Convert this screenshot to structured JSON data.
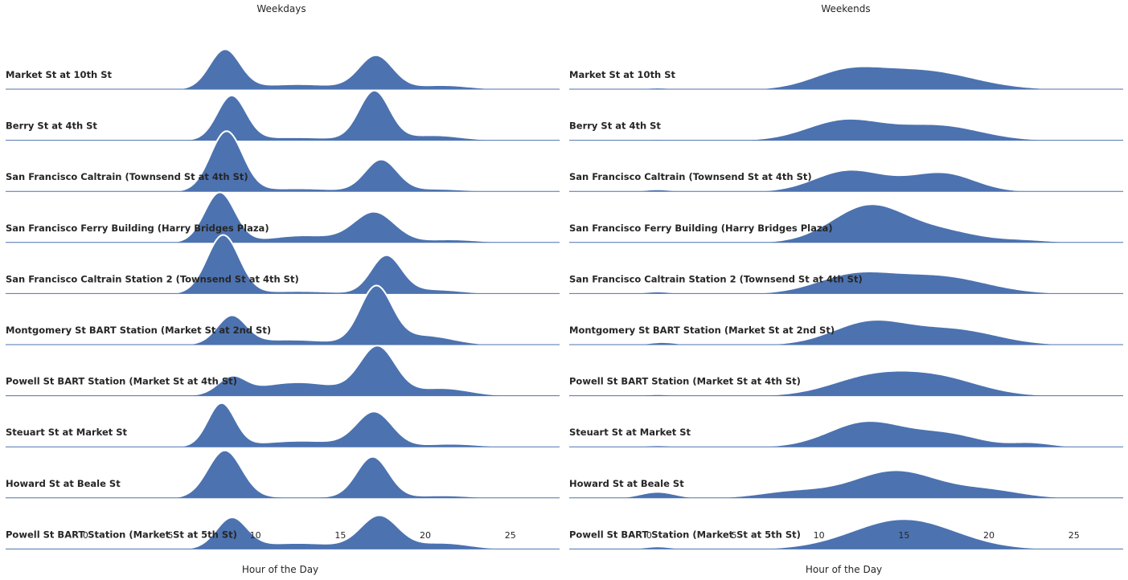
{
  "chart_data": {
    "type": "area",
    "subtype": "ridgeline-density",
    "fill_color": "#4c72b0",
    "outline_color": "#ffffff",
    "baseline_color": "#4c72b0",
    "x_range": [
      -4.7,
      27.9
    ],
    "xticks": [
      0,
      5,
      10,
      15,
      20,
      25
    ],
    "xlabel": "Hour of the Day",
    "grid": false,
    "legend": "none",
    "row_labels": [
      "Market St at 10th St",
      "Berry St at 4th St",
      "San Francisco Caltrain (Townsend St at 4th St)",
      "San Francisco Ferry Building (Harry Bridges Plaza)",
      "San Francisco Caltrain Station 2  (Townsend St at 4th St)",
      "Montgomery St BART Station (Market St at 2nd St)",
      "Powell St BART Station (Market St at 4th St)",
      "Steuart St at Market St",
      "Howard St at Beale St",
      "Powell St BART Station (Market St at 5th St)"
    ],
    "panels": [
      {
        "title": "Weekdays",
        "series": [
          {
            "components": [
              [
                8.2,
                0.9,
                0.78
              ],
              [
                17.1,
                1.0,
                0.66
              ],
              [
                12.5,
                2.5,
                0.1
              ],
              [
                21,
                1.6,
                0.08
              ]
            ]
          },
          {
            "components": [
              [
                8.6,
                0.85,
                0.88
              ],
              [
                17.0,
                0.9,
                0.98
              ],
              [
                12.3,
                2.5,
                0.06
              ],
              [
                20.5,
                1.6,
                0.1
              ]
            ]
          },
          {
            "components": [
              [
                8.3,
                0.95,
                1.2
              ],
              [
                17.4,
                0.95,
                0.63
              ],
              [
                12.5,
                2.2,
                0.06
              ],
              [
                20.7,
                1.6,
                0.05
              ]
            ]
          },
          {
            "components": [
              [
                7.9,
                0.9,
                1.0
              ],
              [
                17.0,
                1.2,
                0.6
              ],
              [
                12.8,
                2.0,
                0.14
              ],
              [
                21.5,
                1.6,
                0.06
              ]
            ]
          },
          {
            "components": [
              [
                8.1,
                0.95,
                1.17
              ],
              [
                17.7,
                0.9,
                0.75
              ],
              [
                12.5,
                2.2,
                0.05
              ],
              [
                20.5,
                1.6,
                0.08
              ]
            ]
          },
          {
            "components": [
              [
                8.6,
                0.85,
                0.55
              ],
              [
                17.1,
                0.95,
                1.14
              ],
              [
                12.0,
                2.5,
                0.1
              ],
              [
                20.0,
                1.6,
                0.18
              ]
            ]
          },
          {
            "components": [
              [
                8.6,
                0.8,
                0.32
              ],
              [
                17.2,
                1.05,
                0.95
              ],
              [
                12.5,
                2.5,
                0.27
              ],
              [
                21.0,
                1.6,
                0.15
              ]
            ]
          },
          {
            "components": [
              [
                8.0,
                0.8,
                0.86
              ],
              [
                17.0,
                1.05,
                0.68
              ],
              [
                12.7,
                2.5,
                0.12
              ],
              [
                21.5,
                1.6,
                0.06
              ]
            ]
          },
          {
            "components": [
              [
                8.2,
                1.0,
                0.95
              ],
              [
                16.9,
                0.95,
                0.82
              ],
              [
                12.5,
                2.5,
                0.02
              ],
              [
                21.0,
                1.6,
                0.05
              ]
            ]
          },
          {
            "components": [
              [
                8.6,
                0.9,
                0.6
              ],
              [
                17.3,
                1.1,
                0.65
              ],
              [
                12.5,
                2.5,
                0.12
              ],
              [
                21.0,
                1.6,
                0.12
              ]
            ]
          }
        ]
      },
      {
        "title": "Weekends",
        "series": [
          {
            "components": [
              [
                11.5,
                2.0,
                0.3
              ],
              [
                16.0,
                3.0,
                0.38
              ],
              [
                0.5,
                0.8,
                0.03
              ]
            ]
          },
          {
            "components": [
              [
                11.5,
                2.2,
                0.4
              ],
              [
                17.0,
                2.5,
                0.3
              ],
              [
                0.5,
                0.8,
                0.02
              ]
            ]
          },
          {
            "components": [
              [
                11.5,
                1.9,
                0.35
              ],
              [
                17.5,
                1.8,
                0.3
              ],
              [
                14.5,
                2.5,
                0.15
              ],
              [
                0.5,
                0.8,
                0.04
              ]
            ]
          },
          {
            "components": [
              [
                13.0,
                2.2,
                0.75
              ],
              [
                17.5,
                2.0,
                0.2
              ],
              [
                22.0,
                1.6,
                0.05
              ],
              [
                0.5,
                0.8,
                0.01
              ]
            ]
          },
          {
            "components": [
              [
                12.0,
                2.2,
                0.35
              ],
              [
                17.0,
                2.8,
                0.35
              ],
              [
                0.5,
                0.8,
                0.04
              ]
            ]
          },
          {
            "components": [
              [
                13.0,
                2.2,
                0.45
              ],
              [
                18.0,
                2.5,
                0.3
              ],
              [
                0.8,
                0.8,
                0.05
              ]
            ]
          },
          {
            "components": [
              [
                13.0,
                2.4,
                0.35
              ],
              [
                17.0,
                2.5,
                0.35
              ],
              [
                0.5,
                0.8,
                0.03
              ]
            ]
          },
          {
            "components": [
              [
                12.8,
                2.2,
                0.5
              ],
              [
                17.5,
                2.0,
                0.25
              ],
              [
                22.5,
                1.2,
                0.08
              ],
              [
                0.5,
                0.8,
                0.03
              ]
            ]
          },
          {
            "components": [
              [
                14.5,
                2.5,
                0.55
              ],
              [
                8.5,
                2.0,
                0.13
              ],
              [
                0.5,
                1.0,
                0.12
              ],
              [
                20.0,
                2.0,
                0.15
              ]
            ]
          },
          {
            "components": [
              [
                15.0,
                3.0,
                0.6
              ],
              [
                0.5,
                0.8,
                0.05
              ]
            ]
          }
        ]
      }
    ]
  }
}
